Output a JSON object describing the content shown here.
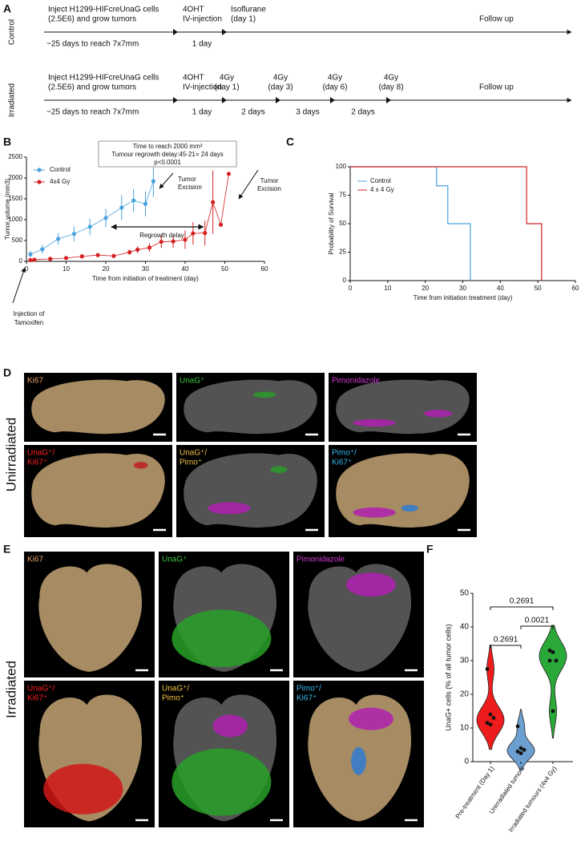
{
  "panel_labels": [
    "A",
    "B",
    "C",
    "D",
    "E",
    "F"
  ],
  "timeline": {
    "rows": [
      {
        "label": "Control",
        "above": [
          [
            "Inject H1299-HIFcreUnaG cells",
            "(2.5E6) and grow tumors"
          ],
          [
            "4OHT",
            "IV-injection"
          ],
          [
            "Isoflurane",
            "(day 1)"
          ],
          [
            "Follow up"
          ]
        ],
        "below": [
          "~25 days to reach 7x7mm",
          "1 day"
        ]
      },
      {
        "label": "Irradiated",
        "above": [
          [
            "Inject H1299-HIFcreUnaG cells",
            "(2.5E6) and grow tumors"
          ],
          [
            "4OHT",
            "IV-injection"
          ],
          [
            "4Gy",
            "(day 1)"
          ],
          [
            "4Gy",
            "(day 3)"
          ],
          [
            "4Gy",
            "(day 6)"
          ],
          [
            "4Gy",
            "(day 8)"
          ],
          [
            "Follow up"
          ]
        ],
        "below": [
          "~25 days to reach 7x7mm",
          "1 day",
          "2 days",
          "3 days",
          "2 days"
        ]
      }
    ]
  },
  "microscopy": [
    {
      "row_label": "Unirradiated",
      "labels": [
        [
          "Ki67"
        ],
        [
          "UnaG⁺"
        ],
        [
          "Pimonidazole"
        ],
        [
          "UnaG⁺/",
          "Ki67⁺"
        ],
        [
          "UnaG⁺/",
          "Pimo⁺"
        ],
        [
          "Pimo⁺/",
          "Ki67⁺"
        ]
      ]
    },
    {
      "row_label": "Irradiated",
      "labels": [
        [
          "Ki67"
        ],
        [
          "UnaG⁺"
        ],
        [
          "Pimonidazole"
        ],
        [
          "UnaG⁺/",
          "Ki67⁺"
        ],
        [
          "UnaG⁺/",
          "Pimo⁺"
        ],
        [
          "Pimo⁺/",
          "Ki67⁺"
        ]
      ]
    }
  ],
  "chart_data": [
    {
      "type": "line",
      "xlabel": "Time from initiation of treatment (day)",
      "ylabel": "Tumor volume (mm3)",
      "xlim": [
        0,
        60
      ],
      "xticks": [
        0,
        10,
        20,
        30,
        40,
        50,
        60
      ],
      "ylim": [
        0,
        2500
      ],
      "yticks": [
        0,
        500,
        1000,
        1500,
        2000,
        2500
      ],
      "series": [
        {
          "name": "Control",
          "color": "#4aa3e0",
          "x": [
            1,
            4,
            8,
            12,
            16,
            20,
            24,
            27,
            30,
            32
          ],
          "values": [
            170,
            290,
            540,
            660,
            830,
            1040,
            1290,
            1460,
            1380,
            1920
          ],
          "errors": [
            80,
            100,
            140,
            180,
            200,
            220,
            300,
            280,
            300,
            380
          ]
        },
        {
          "name": "4x4 Gy",
          "color": "#d62020",
          "x": [
            1,
            2,
            6,
            10,
            14,
            18,
            22,
            26,
            28,
            31,
            34,
            37,
            40,
            42,
            45,
            47,
            49,
            51
          ],
          "values": [
            30,
            40,
            60,
            80,
            120,
            150,
            130,
            220,
            280,
            330,
            470,
            480,
            520,
            670,
            680,
            1420,
            880,
            2100
          ],
          "errors": [
            20,
            30,
            40,
            40,
            40,
            50,
            40,
            60,
            80,
            100,
            150,
            150,
            220,
            270,
            300,
            760,
            0,
            0
          ]
        }
      ],
      "annotations": {
        "summary": [
          "Time to reach 2000 mm³",
          "Tumour regrowth delay:45-21= 24 days",
          "p<0.0001"
        ],
        "excision_control": [
          "Tumor",
          "Excision"
        ],
        "excision_irradiated": [
          "Tumor",
          "Excision"
        ],
        "delay": "Regrowth delay",
        "injection": [
          "Injection of",
          "Tamoxifen"
        ]
      }
    },
    {
      "type": "step",
      "xlabel": "Time from initiation treatment (day)",
      "ylabel": "Probability of Survival",
      "xlim": [
        0,
        60
      ],
      "xticks": [
        0,
        10,
        20,
        30,
        40,
        50,
        60
      ],
      "ylim": [
        0,
        100
      ],
      "yticks": [
        0,
        25,
        50,
        75,
        100
      ],
      "series": [
        {
          "name": "Control",
          "color": "#4aa3e0",
          "x": [
            0,
            23,
            26,
            32
          ],
          "values": [
            100,
            83.3,
            50,
            0
          ]
        },
        {
          "name": "4 x 4 Gy",
          "color": "#d62020",
          "x": [
            0,
            47,
            51
          ],
          "values": [
            100,
            50,
            0
          ]
        }
      ]
    },
    {
      "type": "violin",
      "ylabel": "UnaG+ cells (% of all tumor cells)",
      "ylim": [
        0,
        50
      ],
      "yticks": [
        0,
        10,
        20,
        30,
        40,
        50
      ],
      "categories": [
        "Pre-treatment (Day 1)",
        "Unirradiated tumors",
        "Irradiated tumours (4x4 Gy)"
      ],
      "colors": [
        "#ee1c1c",
        "#6a9fd0",
        "#2aa838"
      ],
      "values": [
        [
          27.5,
          14,
          13,
          11.5,
          11
        ],
        [
          10.5,
          4,
          3.5,
          3,
          2.5
        ],
        [
          33,
          32.5,
          30,
          30,
          15
        ]
      ],
      "comparisons": [
        "0.2691",
        "0.0021",
        "0.2691"
      ]
    }
  ]
}
